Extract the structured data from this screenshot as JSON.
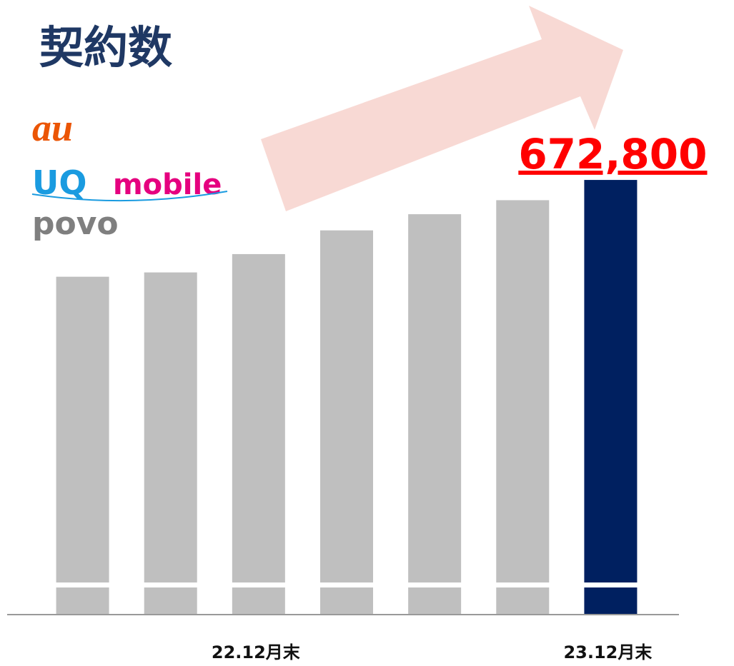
{
  "chart_data": {
    "type": "bar",
    "title": "契約数",
    "brands": [
      "au",
      "UQ",
      "mobile",
      "povo"
    ],
    "categories": [
      null,
      null,
      "22.12月末",
      null,
      null,
      null,
      "23.12月末"
    ],
    "values": [
      583000,
      587000,
      604000,
      626000,
      641000,
      654000,
      672800
    ],
    "value_labels": [
      null,
      null,
      null,
      null,
      null,
      null,
      "672,800"
    ],
    "colors": [
      "#bfbfbf",
      "#bfbfbf",
      "#bfbfbf",
      "#bfbfbf",
      "#bfbfbf",
      "#bfbfbf",
      "#002060"
    ],
    "ylim": [
      300000,
      700000
    ],
    "broken_axis": true
  }
}
